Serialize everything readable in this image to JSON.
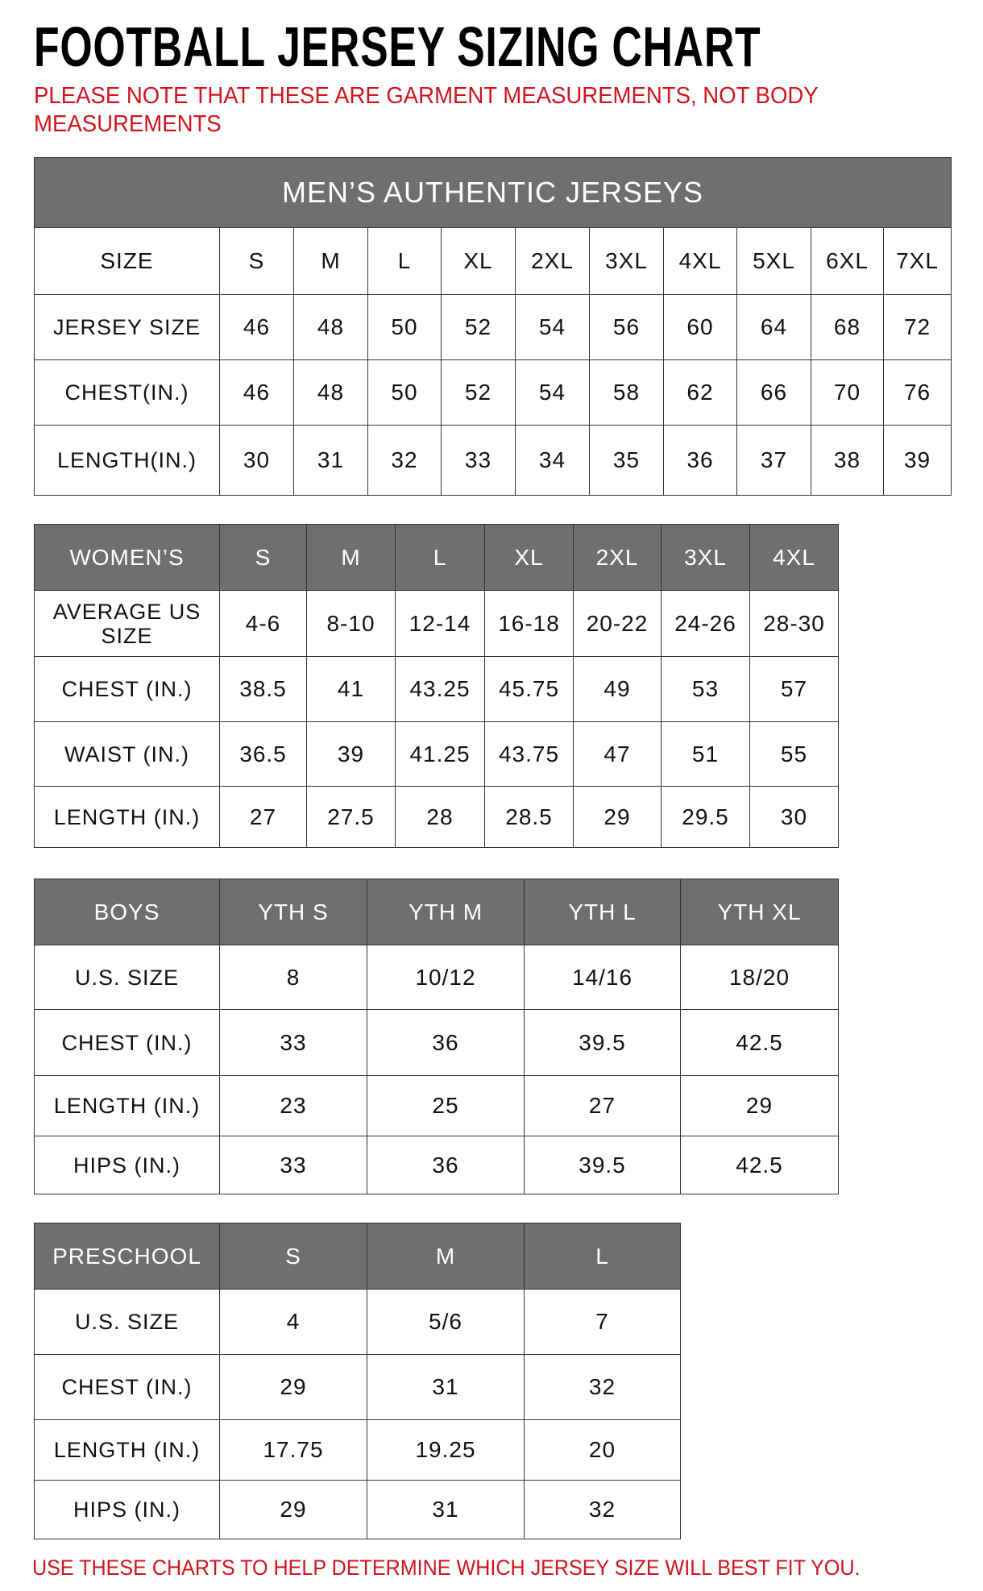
{
  "title": "FOOTBALL JERSEY SIZING CHART",
  "note": "PLEASE NOTE THAT THESE ARE GARMENT MEASUREMENTS, NOT BODY MEASUREMENTS",
  "footer": "USE THESE CHARTS TO HELP DETERMINE WHICH JERSEY SIZE WILL BEST FIT YOU.",
  "colors": {
    "header_bg": "#6f6f6f",
    "note_red": "#d0141e"
  },
  "tables": [
    {
      "banner": "MEN’S AUTHENTIC JERSEYS",
      "header_gray": false,
      "header": [
        "SIZE",
        "S",
        "M",
        "L",
        "XL",
        "2XL",
        "3XL",
        "4XL",
        "5XL",
        "6XL",
        "7XL"
      ],
      "rows": [
        [
          "JERSEY SIZE",
          "46",
          "48",
          "50",
          "52",
          "54",
          "56",
          "60",
          "64",
          "68",
          "72"
        ],
        [
          "CHEST(IN.)",
          "46",
          "48",
          "50",
          "52",
          "54",
          "58",
          "62",
          "66",
          "70",
          "76"
        ],
        [
          "LENGTH(IN.)",
          "30",
          "31",
          "32",
          "33",
          "34",
          "35",
          "36",
          "37",
          "38",
          "39"
        ]
      ]
    },
    {
      "header_gray": true,
      "header": [
        "WOMEN’S",
        "S",
        "M",
        "L",
        "XL",
        "2XL",
        "3XL",
        "4XL"
      ],
      "rows": [
        [
          "AVERAGE US SIZE",
          "4-6",
          "8-10",
          "12-14",
          "16-18",
          "20-22",
          "24-26",
          "28-30"
        ],
        [
          "CHEST (IN.)",
          "38.5",
          "41",
          "43.25",
          "45.75",
          "49",
          "53",
          "57"
        ],
        [
          "WAIST (IN.)",
          "36.5",
          "39",
          "41.25",
          "43.75",
          "47",
          "51",
          "55"
        ],
        [
          "LENGTH (IN.)",
          "27",
          "27.5",
          "28",
          "28.5",
          "29",
          "29.5",
          "30"
        ]
      ]
    },
    {
      "header_gray": true,
      "header": [
        "BOYS",
        "YTH S",
        "YTH M",
        "YTH L",
        "YTH XL"
      ],
      "rows": [
        [
          "U.S. SIZE",
          "8",
          "10/12",
          "14/16",
          "18/20"
        ],
        [
          "CHEST (IN.)",
          "33",
          "36",
          "39.5",
          "42.5"
        ],
        [
          "LENGTH (IN.)",
          "23",
          "25",
          "27",
          "29"
        ],
        [
          "HIPS (IN.)",
          "33",
          "36",
          "39.5",
          "42.5"
        ]
      ]
    },
    {
      "header_gray": true,
      "header": [
        "PRESCHOOL",
        "S",
        "M",
        "L"
      ],
      "rows": [
        [
          "U.S. SIZE",
          "4",
          "5/6",
          "7"
        ],
        [
          "CHEST (IN.)",
          "29",
          "31",
          "32"
        ],
        [
          "LENGTH (IN.)",
          "17.75",
          "19.25",
          "20"
        ],
        [
          "HIPS (IN.)",
          "29",
          "31",
          "32"
        ]
      ]
    }
  ]
}
